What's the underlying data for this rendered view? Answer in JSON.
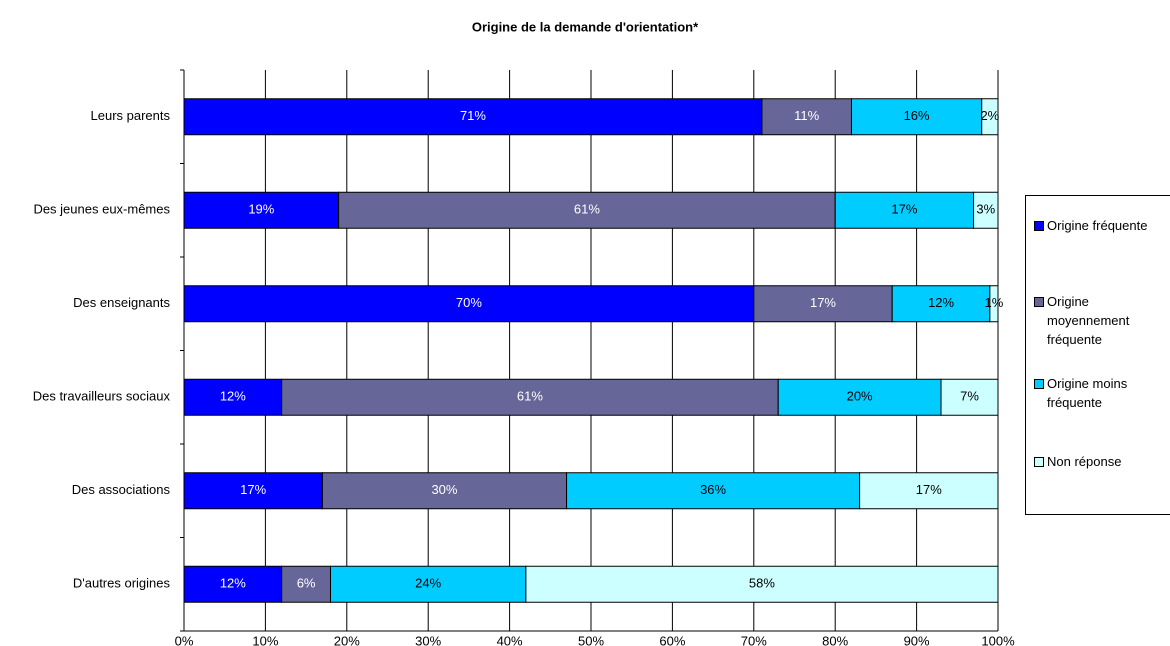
{
  "chart_data": {
    "type": "stacked-bar-horizontal",
    "title": "Origine de la demande d'orientation*",
    "categories": [
      "Leurs parents",
      "Des jeunes eux-mêmes",
      "Des enseignants",
      "Des travailleurs sociaux",
      "Des associations",
      "D'autres origines"
    ],
    "series": [
      {
        "name": "Origine fréquente",
        "color": "#0000ff",
        "values": [
          71,
          19,
          70,
          12,
          17,
          12
        ],
        "value_labels": [
          "71%",
          "19%",
          "70%",
          "12%",
          "17%",
          "12%"
        ]
      },
      {
        "name": "Origine moyennement fréquente",
        "color": "#666699",
        "values": [
          11,
          61,
          17,
          61,
          30,
          6
        ],
        "value_labels": [
          "11%",
          "61%",
          "17%",
          "61%",
          "30%",
          "6%"
        ]
      },
      {
        "name": "Origine moins fréquente",
        "color": "#00ccff",
        "values": [
          16,
          17,
          12,
          20,
          36,
          24
        ],
        "value_labels": [
          "16%",
          "17%",
          "12%",
          "20%",
          "36%",
          "24%"
        ]
      },
      {
        "name": "Non réponse",
        "color": "#ccffff",
        "values": [
          2,
          3,
          1,
          7,
          17,
          58
        ],
        "value_labels": [
          "2%",
          "3%",
          "1%",
          "7%",
          "17%",
          "58%"
        ]
      }
    ],
    "xlim": [
      0,
      100
    ],
    "xticks": [
      {
        "value": 0,
        "label": "0%"
      },
      {
        "value": 10,
        "label": "10%"
      },
      {
        "value": 20,
        "label": "20%"
      },
      {
        "value": 30,
        "label": "30%"
      },
      {
        "value": 40,
        "label": "40%"
      },
      {
        "value": 50,
        "label": "50%"
      },
      {
        "value": 60,
        "label": "60%"
      },
      {
        "value": 70,
        "label": "70%"
      },
      {
        "value": 80,
        "label": "80%"
      },
      {
        "value": 90,
        "label": "90%"
      },
      {
        "value": 100,
        "label": "100%"
      }
    ],
    "grid": true
  }
}
